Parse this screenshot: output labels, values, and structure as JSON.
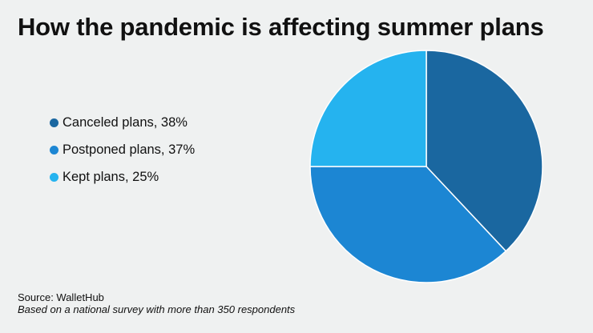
{
  "chart_data": {
    "type": "pie",
    "title": "How the pandemic is affecting summer plans",
    "slices": [
      {
        "label": "Canceled plans, 38%",
        "value": 38,
        "color": "#1a67a0"
      },
      {
        "label": "Postponed plans, 37%",
        "value": 37,
        "color": "#1c86d3"
      },
      {
        "label": "Kept plans, 25%",
        "value": 25,
        "color": "#25b3ef"
      }
    ],
    "start": "top",
    "direction": "clockwise",
    "legend_position": "left"
  },
  "footer": {
    "source": "Source: WalletHub",
    "note": "Based on a national survey with more than 350 respondents"
  }
}
